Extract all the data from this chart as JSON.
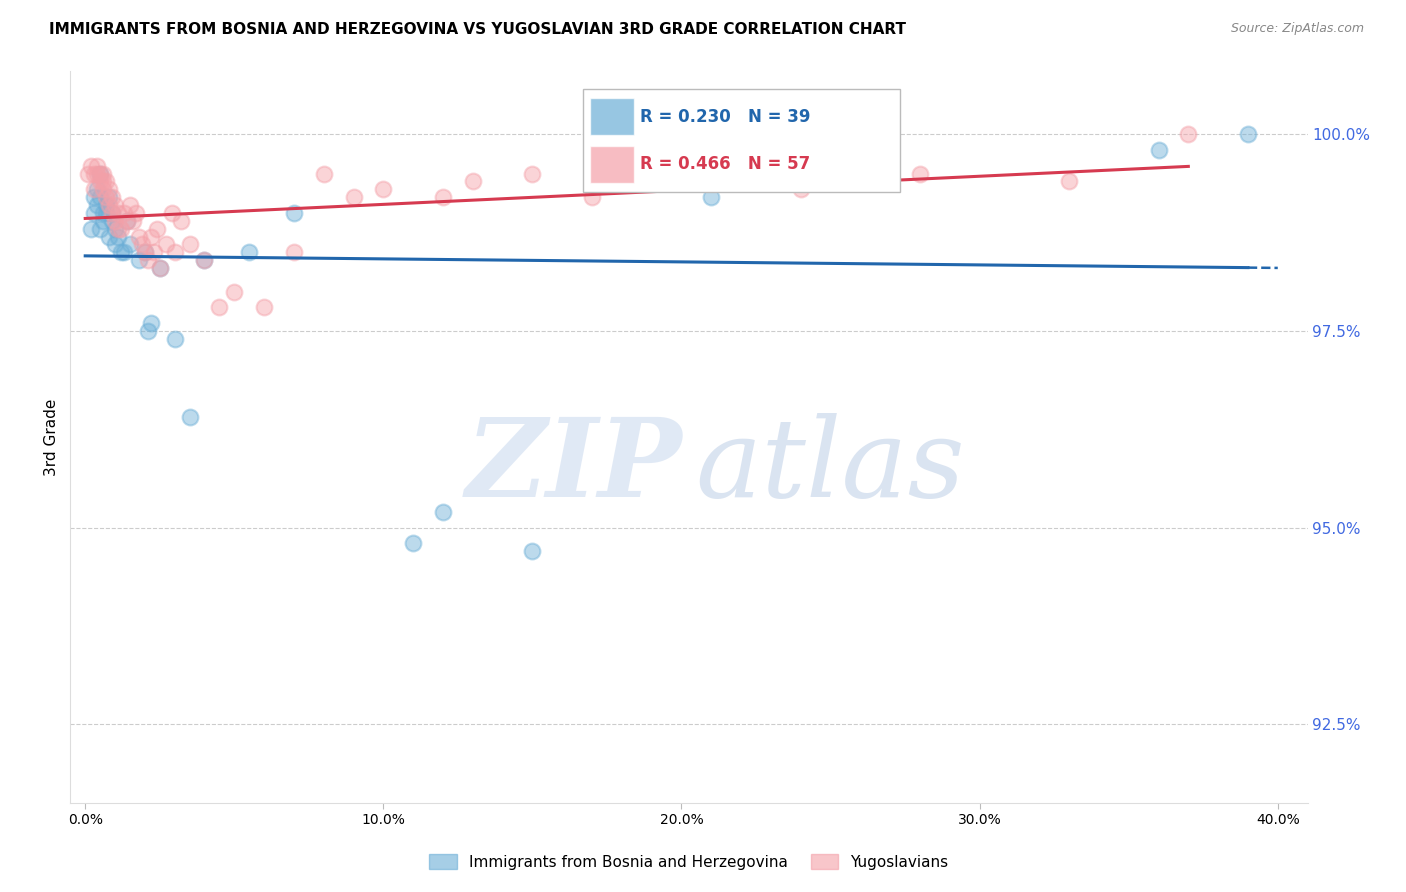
{
  "title": "IMMIGRANTS FROM BOSNIA AND HERZEGOVINA VS YUGOSLAVIAN 3RD GRADE CORRELATION CHART",
  "source": "Source: ZipAtlas.com",
  "ylabel": "3rd Grade",
  "ylim_bottom": 91.5,
  "ylim_top": 100.8,
  "xlim_left": -0.5,
  "xlim_right": 41.0,
  "yticks": [
    92.5,
    95.0,
    97.5,
    100.0
  ],
  "xticks": [
    0.0,
    10.0,
    20.0,
    30.0,
    40.0
  ],
  "blue_R": 0.23,
  "blue_N": 39,
  "pink_R": 0.466,
  "pink_N": 57,
  "blue_color": "#6baed6",
  "pink_color": "#f4a0a8",
  "blue_line_color": "#2166ac",
  "pink_line_color": "#d63a50",
  "blue_x": [
    0.2,
    0.3,
    0.3,
    0.4,
    0.4,
    0.5,
    0.5,
    0.5,
    0.6,
    0.6,
    0.7,
    0.7,
    0.8,
    0.8,
    0.9,
    0.9,
    1.0,
    1.0,
    1.1,
    1.2,
    1.3,
    1.4,
    1.5,
    1.8,
    2.0,
    2.1,
    2.2,
    2.5,
    3.0,
    3.5,
    4.0,
    5.5,
    7.0,
    11.0,
    12.0,
    15.0,
    21.0,
    36.0,
    39.0
  ],
  "blue_y": [
    98.8,
    99.2,
    99.0,
    99.1,
    99.3,
    99.5,
    99.2,
    98.8,
    99.0,
    98.9,
    99.1,
    99.0,
    99.2,
    98.7,
    98.9,
    99.0,
    98.8,
    98.6,
    98.7,
    98.5,
    98.5,
    98.9,
    98.6,
    98.4,
    98.5,
    97.5,
    97.6,
    98.3,
    97.4,
    96.4,
    98.4,
    98.5,
    99.0,
    94.8,
    95.2,
    94.7,
    99.2,
    99.8,
    100.0
  ],
  "pink_x": [
    0.1,
    0.2,
    0.3,
    0.3,
    0.4,
    0.4,
    0.5,
    0.5,
    0.6,
    0.6,
    0.6,
    0.7,
    0.7,
    0.8,
    0.8,
    0.9,
    0.9,
    1.0,
    1.0,
    1.1,
    1.1,
    1.2,
    1.3,
    1.4,
    1.5,
    1.6,
    1.7,
    1.8,
    1.9,
    2.0,
    2.1,
    2.2,
    2.3,
    2.4,
    2.5,
    2.7,
    2.9,
    3.0,
    3.2,
    3.5,
    4.0,
    4.5,
    5.0,
    6.0,
    7.0,
    8.0,
    9.0,
    10.0,
    12.0,
    13.0,
    15.0,
    17.0,
    20.0,
    24.0,
    28.0,
    33.0,
    37.0
  ],
  "pink_y": [
    99.5,
    99.6,
    99.3,
    99.5,
    99.5,
    99.6,
    99.4,
    99.5,
    99.3,
    99.5,
    99.4,
    99.4,
    99.2,
    99.1,
    99.3,
    99.2,
    99.0,
    99.1,
    98.9,
    99.0,
    98.8,
    98.8,
    99.0,
    98.9,
    99.1,
    98.9,
    99.0,
    98.7,
    98.6,
    98.5,
    98.4,
    98.7,
    98.5,
    98.8,
    98.3,
    98.6,
    99.0,
    98.5,
    98.9,
    98.6,
    98.4,
    97.8,
    98.0,
    97.8,
    98.5,
    99.5,
    99.2,
    99.3,
    99.2,
    99.4,
    99.5,
    99.2,
    99.6,
    99.3,
    99.5,
    99.4,
    100.0
  ]
}
